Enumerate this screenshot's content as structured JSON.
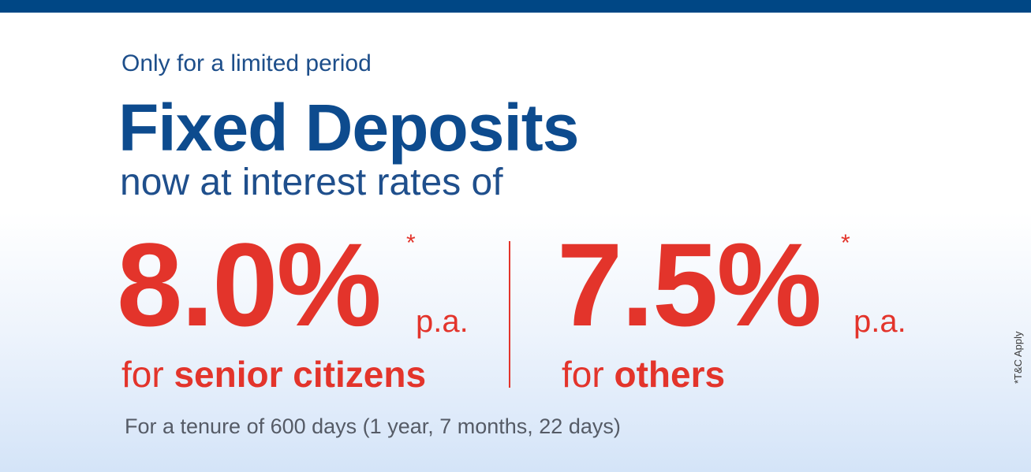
{
  "banner": {
    "tagline": "Only for a limited period",
    "headline": "Fixed Deposits",
    "subhead": "now at interest rates of",
    "offers": [
      {
        "rate": "8.0%",
        "asterisk": "*",
        "period": "p.a.",
        "prefix": "for",
        "audience": "senior citizens"
      },
      {
        "rate": "7.5%",
        "asterisk": "*",
        "period": "p.a.",
        "prefix": "for",
        "audience": "others"
      }
    ],
    "tenure": "For a tenure of 600 days (1 year, 7 months, 22 days)",
    "disclaimer": "*T&C Apply"
  },
  "colors": {
    "top_bar": "#004785",
    "headline_blue": "#0d4b8e",
    "rate_red": "#e3342b",
    "tenure_gray": "#555b66"
  }
}
